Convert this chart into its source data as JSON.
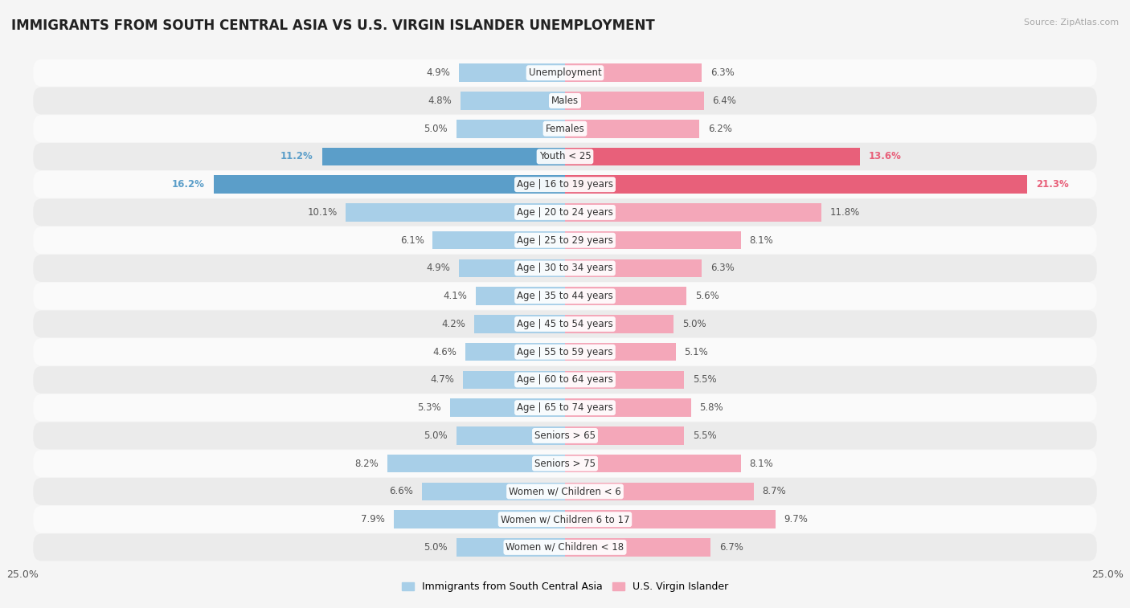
{
  "title": "IMMIGRANTS FROM SOUTH CENTRAL ASIA VS U.S. VIRGIN ISLANDER UNEMPLOYMENT",
  "source": "Source: ZipAtlas.com",
  "categories": [
    "Unemployment",
    "Males",
    "Females",
    "Youth < 25",
    "Age | 16 to 19 years",
    "Age | 20 to 24 years",
    "Age | 25 to 29 years",
    "Age | 30 to 34 years",
    "Age | 35 to 44 years",
    "Age | 45 to 54 years",
    "Age | 55 to 59 years",
    "Age | 60 to 64 years",
    "Age | 65 to 74 years",
    "Seniors > 65",
    "Seniors > 75",
    "Women w/ Children < 6",
    "Women w/ Children 6 to 17",
    "Women w/ Children < 18"
  ],
  "left_values": [
    4.9,
    4.8,
    5.0,
    11.2,
    16.2,
    10.1,
    6.1,
    4.9,
    4.1,
    4.2,
    4.6,
    4.7,
    5.3,
    5.0,
    8.2,
    6.6,
    7.9,
    5.0
  ],
  "right_values": [
    6.3,
    6.4,
    6.2,
    13.6,
    21.3,
    11.8,
    8.1,
    6.3,
    5.6,
    5.0,
    5.1,
    5.5,
    5.8,
    5.5,
    8.1,
    8.7,
    9.7,
    6.7
  ],
  "left_color": "#a8cfe8",
  "right_color": "#f4a7b9",
  "highlight_left_color": "#5b9ec9",
  "highlight_right_color": "#e8607a",
  "highlight_rows": [
    3,
    4
  ],
  "xlim": 25.0,
  "legend_left": "Immigrants from South Central Asia",
  "legend_right": "U.S. Virgin Islander",
  "background_color": "#f5f5f5",
  "row_bg_light": "#fafafa",
  "row_bg_dark": "#ebebeb",
  "title_fontsize": 12,
  "label_fontsize": 8.5,
  "value_fontsize": 8.5
}
